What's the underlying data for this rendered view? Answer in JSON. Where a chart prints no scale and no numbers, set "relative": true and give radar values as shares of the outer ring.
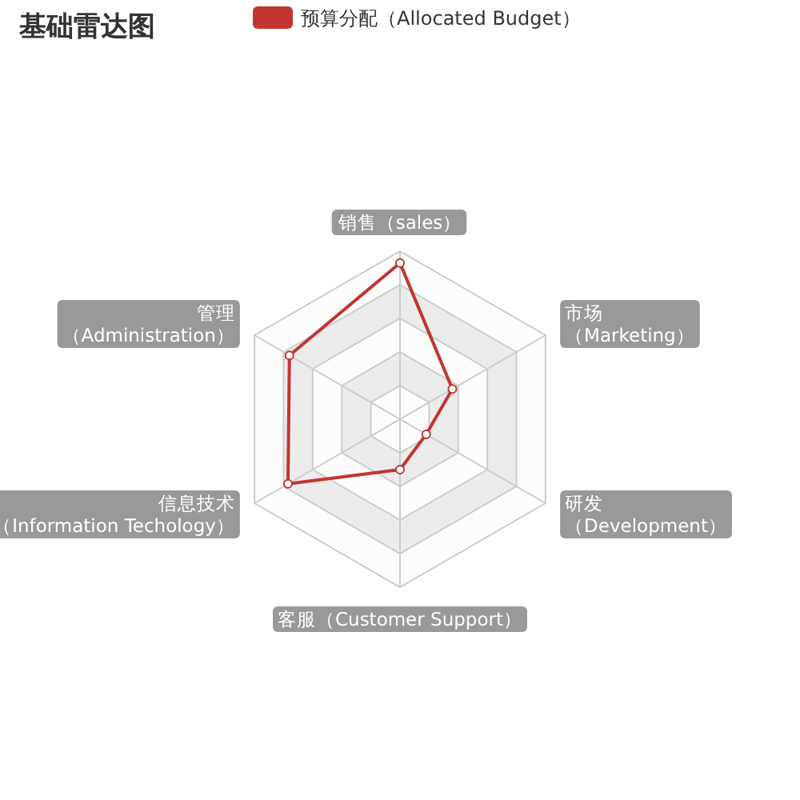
{
  "chart_data": {
    "type": "radar",
    "title": "基础雷达图",
    "legend": "top",
    "marker": "circle",
    "relative": true,
    "categories": [
      "销售（sales）",
      "市场（Marketing）",
      "研发（Development）",
      "客服（Customer Support）",
      "信息技术（Information Techology）",
      "管理（Administration）"
    ],
    "series": [
      {
        "name": "预算分配（Allocated Budget）",
        "color": "#c23531",
        "values": [
          0.93,
          0.36,
          0.18,
          0.3,
          0.77,
          0.76
        ]
      }
    ]
  }
}
